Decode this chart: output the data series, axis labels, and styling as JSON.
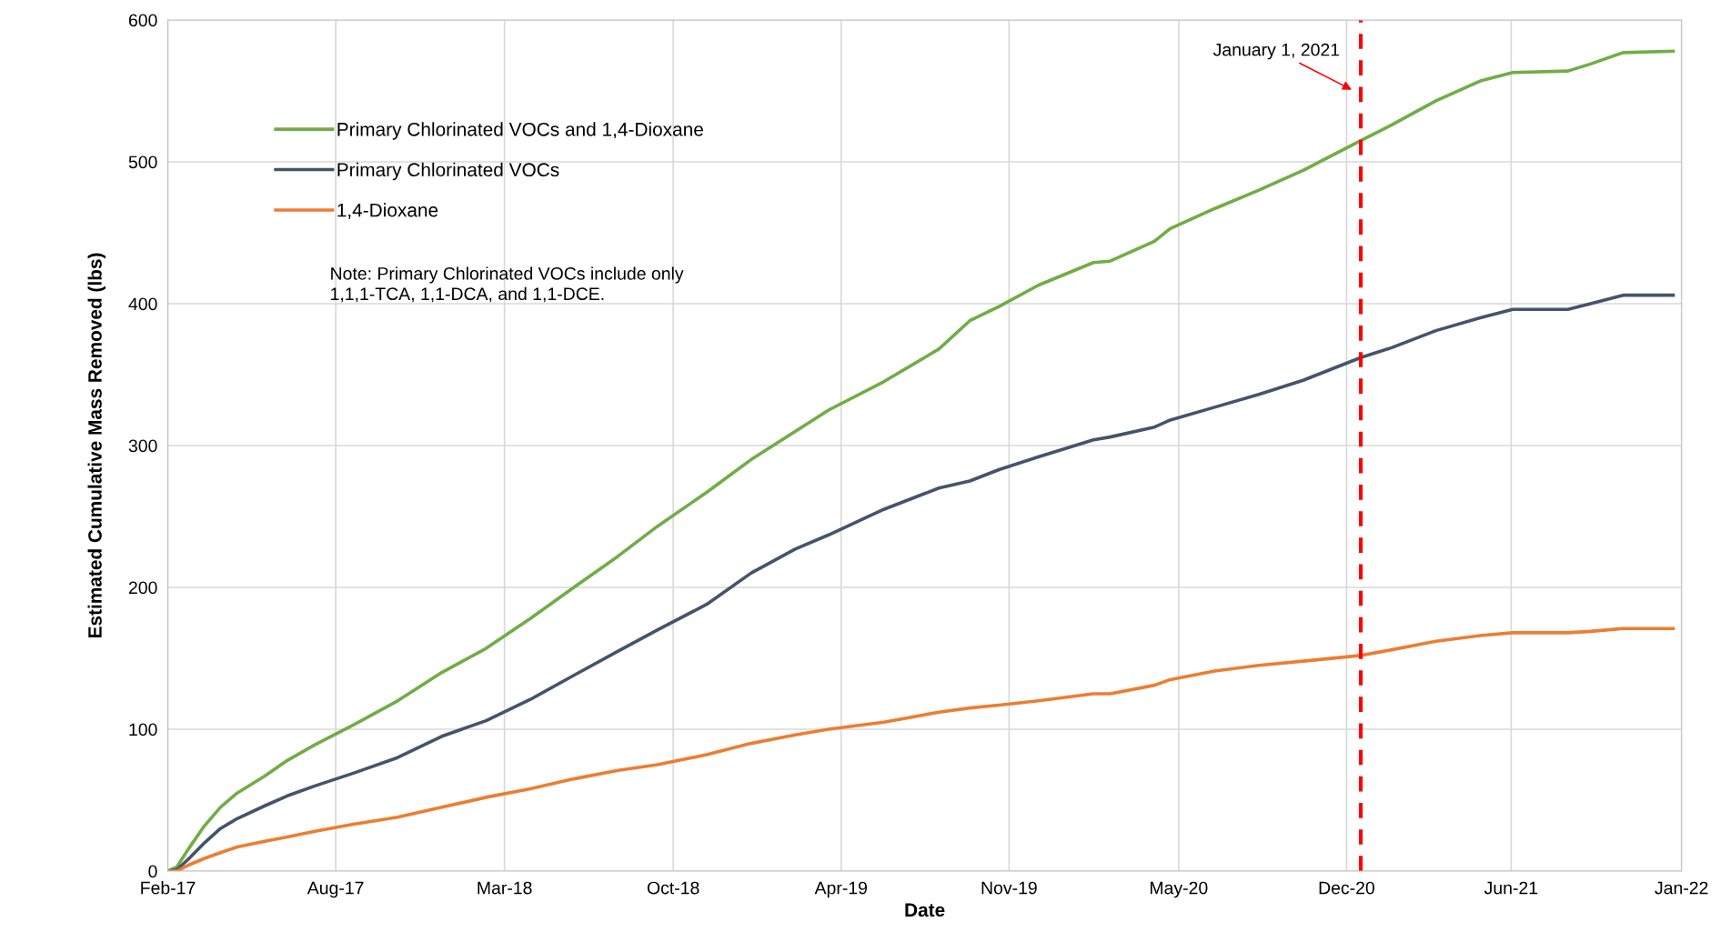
{
  "chart_data": {
    "type": "line",
    "xlabel": "Date",
    "ylabel": "Estimated Cumulative Mass Removed (lbs)",
    "x": [
      "2017-02-03",
      "2017-02-14",
      "2017-02-27",
      "2017-03-19",
      "2017-04-07",
      "2017-04-27",
      "2017-05-30",
      "2017-06-26",
      "2017-07-29",
      "2017-09-13",
      "2017-11-05",
      "2017-12-28",
      "2018-02-19",
      "2018-04-13",
      "2018-06-04",
      "2018-07-27",
      "2018-09-12",
      "2018-11-10",
      "2019-01-02",
      "2019-02-24",
      "2019-04-05",
      "2019-06-10",
      "2019-08-15",
      "2019-09-21",
      "2019-10-26",
      "2019-12-12",
      "2020-02-16",
      "2020-03-07",
      "2020-04-29",
      "2020-05-18",
      "2020-07-10",
      "2020-09-01",
      "2020-10-24",
      "2021-01-01",
      "2021-02-07",
      "2021-04-01",
      "2021-05-24",
      "2021-07-02",
      "2021-09-06",
      "2021-10-03",
      "2021-11-11",
      "2022-01-10"
    ],
    "series": [
      {
        "name": "Primary Chlorinated VOCs and 1,4-Dioxane",
        "color": "#70ad47",
        "values": [
          0,
          3,
          15,
          32,
          45,
          55,
          67,
          78,
          89,
          103,
          120,
          140,
          157,
          178,
          200,
          222,
          243,
          267,
          290,
          310,
          325,
          345,
          368,
          388,
          398,
          413,
          429,
          430,
          444,
          453,
          467,
          480,
          494,
          515,
          526,
          543,
          557,
          563,
          564,
          569,
          577,
          578
        ]
      },
      {
        "name": "Primary Chlorinated VOCs",
        "color": "#44546a",
        "values": [
          0,
          1,
          8,
          20,
          30,
          37,
          46,
          53,
          60,
          69,
          80,
          95,
          106,
          121,
          138,
          155,
          170,
          188,
          210,
          227,
          237,
          255,
          270,
          275,
          283,
          292,
          304,
          306,
          313,
          318,
          327,
          336,
          346,
          362,
          369,
          381,
          390,
          396,
          396,
          400,
          406,
          406
        ]
      },
      {
        "name": "1,4-Dioxane",
        "color": "#ed7d31",
        "values": [
          0,
          0,
          4,
          9,
          13,
          17,
          21,
          24,
          28,
          33,
          38,
          45,
          52,
          58,
          65,
          71,
          75,
          82,
          90,
          96,
          100,
          105,
          112,
          115,
          117,
          120,
          125,
          125,
          131,
          135,
          141,
          145,
          148,
          152,
          156,
          162,
          166,
          168,
          168,
          169,
          171,
          171
        ]
      }
    ],
    "xlim": [
      "2017-02-03",
      "2022-01-20"
    ],
    "xticks": [
      {
        "value": "2017-02-03",
        "label": "Feb-17"
      },
      {
        "value": "2017-08-23",
        "label": "Aug-17"
      },
      {
        "value": "2018-03-13",
        "label": "Mar-18"
      },
      {
        "value": "2018-10-01",
        "label": "Oct-18"
      },
      {
        "value": "2019-04-20",
        "label": "Apr-19"
      },
      {
        "value": "2019-11-07",
        "label": "Nov-19"
      },
      {
        "value": "2020-05-28",
        "label": "May-20"
      },
      {
        "value": "2020-12-15",
        "label": "Dec-20"
      },
      {
        "value": "2021-06-30",
        "label": "Jun-21"
      },
      {
        "value": "2022-01-20",
        "label": "Jan-22"
      }
    ],
    "ylim": [
      0,
      600
    ],
    "yticks": [
      0,
      100,
      200,
      300,
      400,
      500,
      600
    ],
    "ref_lines": [
      {
        "axis": "x",
        "value": "2021-01-01",
        "label": "January 1, 2021",
        "color": "#ff0000",
        "line_style": "dashed"
      }
    ],
    "annotations": [
      "Note: Primary Chlorinated VOCs include only\n1,1,1-TCA, 1,1-DCA, and 1,1-DCE."
    ],
    "grid": true,
    "legend": "top left",
    "marker": "none",
    "line_style": "solid"
  }
}
